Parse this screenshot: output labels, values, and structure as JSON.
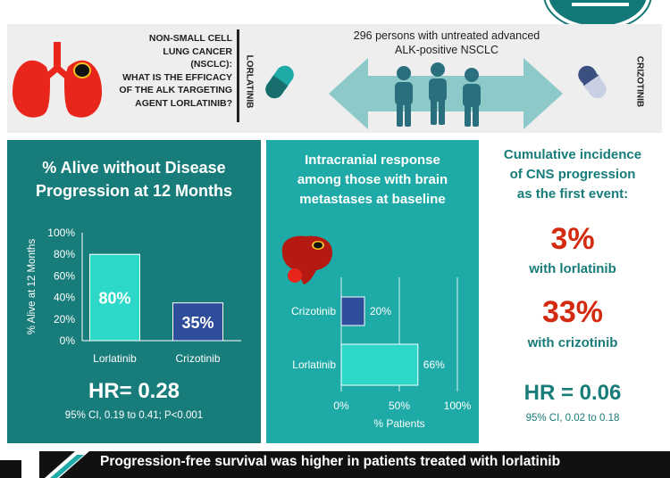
{
  "header": {
    "question": "NON-SMALL CELL\nLUNG CANCER\n(NSCLC):\nWHAT IS THE EFFICACY\nOF THE ALK TARGETING\nAGENT LORLATINIB?",
    "drug_left": "LORLATINIB",
    "drug_right": "CRIZOTINIB",
    "population": "296 persons with untreated advanced\nALK-positive NSCLC",
    "icons": [
      "lung-icon",
      "pill-icon",
      "double-arrow-icon",
      "people-icon",
      "pill-icon"
    ]
  },
  "panel_pfs": {
    "title": "% Alive without Disease\nProgression at 12 Months",
    "hr": "HR= 0.28",
    "ci": "95% CI, 0.19 to 0.41; P<0.001"
  },
  "panel_ic": {
    "title": "Intracranial response\namong those with brain\nmetastases at baseline",
    "icon": "brain-icon"
  },
  "panel_cns": {
    "title": "Cumulative incidence\nof CNS progression\nas the first event:",
    "lor_pct": "3%",
    "lor_label": "with lorlatinib",
    "criz_pct": "33%",
    "criz_label": "with crizotinib",
    "hr": "HR = 0.06",
    "ci": "95% CI, 0.02 to 0.18"
  },
  "footer": {
    "text": "Progression-free survival was higher in patients treated with lorlatinib"
  },
  "colors": {
    "dark_teal": "#177c7a",
    "mid_teal": "#1eaaa6",
    "lorlatinib_bar": "#2ed8c8",
    "crizotinib_bar": "#2e4d9a",
    "accent_red": "#d42a10"
  },
  "chart_data": [
    {
      "type": "bar",
      "title": "% Alive without Disease Progression at 12 Months",
      "categories": [
        "Lorlatinib",
        "Crizotinib"
      ],
      "values": [
        80,
        35
      ],
      "data_labels": [
        "80%",
        "35%"
      ],
      "ylabel": "% Alive at 12 Months",
      "ylim": [
        0,
        100
      ],
      "yticks": [
        "0%",
        "20%",
        "40%",
        "60%",
        "80%",
        "100%"
      ],
      "grid": false
    },
    {
      "type": "bar",
      "orientation": "horizontal",
      "title": "Intracranial response among those with brain metastases at baseline",
      "categories": [
        "Crizotinib",
        "Lorlatinib"
      ],
      "values": [
        20,
        66
      ],
      "data_labels": [
        "20%",
        "66%"
      ],
      "xlabel": "% Patients",
      "xlim": [
        0,
        100
      ],
      "xticks": [
        "0%",
        "50%",
        "100%"
      ],
      "grid": true
    }
  ]
}
